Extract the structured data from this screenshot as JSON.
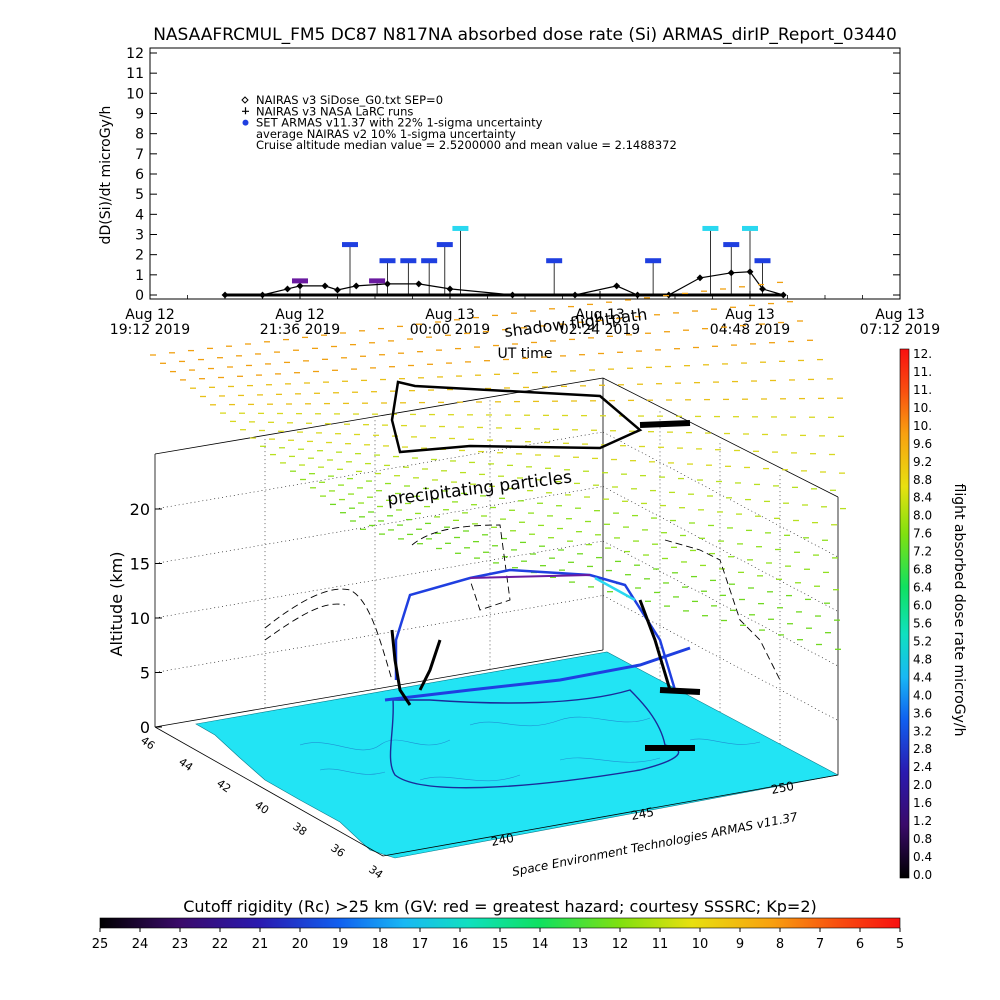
{
  "title": "NASAAFRCMUL_FM5 DC87 N817NA absorbed dose rate (Si) ARMAS_dirIP_Report_03440",
  "top_chart": {
    "ylabel": "dD(Si)/dt microGy/h",
    "xlabel": "UT time",
    "legend": [
      {
        "marker": "diamond",
        "text": "NAIRAS v3 SiDose_G0.txt SEP=0"
      },
      {
        "marker": "plus",
        "text": "NAIRAS v3 NASA LaRC runs"
      },
      {
        "marker": "dot",
        "text": "SET ARMAS v11.37 with 22% 1-sigma uncertainty"
      },
      {
        "marker": "none",
        "text": "average NAIRAS v2 10% 1-sigma uncertainty"
      },
      {
        "marker": "none",
        "text": "Cruise altitude median value = 2.5200000 and mean value = 2.1488372"
      }
    ],
    "x_ticks": [
      {
        "l1": "Aug 12",
        "l2": "19:12 2019"
      },
      {
        "l1": "Aug 12",
        "l2": "21:36 2019"
      },
      {
        "l1": "Aug 13",
        "l2": "00:00 2019"
      },
      {
        "l1": "Aug 13",
        "l2": "02:24 2019"
      },
      {
        "l1": "Aug 13",
        "l2": "04:48 2019"
      },
      {
        "l1": "Aug 13",
        "l2": "07:12 2019"
      }
    ],
    "y_ticks": [
      "0",
      "1",
      "2",
      "3",
      "4",
      "5",
      "6",
      "7",
      "8",
      "9",
      "10",
      "11",
      "12"
    ]
  },
  "chart_data": [
    {
      "type": "scatter",
      "title": "NASAAFRCMUL_FM5 DC87 N817NA absorbed dose rate (Si) ARMAS_dirIP_Report_03440",
      "xlabel": "UT time",
      "ylabel": "dD(Si)/dt microGy/h",
      "xlim": [
        "2019-08-12 19:12",
        "2019-08-13 07:12"
      ],
      "ylim": [
        0,
        12
      ],
      "series": [
        {
          "name": "NAIRAS v3 SiDose_G0.txt SEP=0",
          "color": "#000000",
          "x": [
            "2019-08-12 20:24",
            "2019-08-12 21:00",
            "2019-08-12 21:24",
            "2019-08-12 21:36",
            "2019-08-12 22:00",
            "2019-08-12 22:12",
            "2019-08-12 22:30",
            "2019-08-12 23:00",
            "2019-08-12 23:30",
            "2019-08-13 00:00",
            "2019-08-13 01:00",
            "2019-08-13 02:00",
            "2019-08-13 02:40",
            "2019-08-13 03:00",
            "2019-08-13 03:30",
            "2019-08-13 04:00",
            "2019-08-13 04:30",
            "2019-08-13 04:48",
            "2019-08-13 05:00",
            "2019-08-13 05:20"
          ],
          "values": [
            0.0,
            0.0,
            0.3,
            0.45,
            0.45,
            0.25,
            0.45,
            0.55,
            0.55,
            0.3,
            0.0,
            0.0,
            0.45,
            0.0,
            0.0,
            0.85,
            1.1,
            1.15,
            0.3,
            0.0
          ]
        },
        {
          "name": "SET ARMAS v11.37 with 22% 1-sigma uncertainty",
          "color": "#1f3fe0",
          "x": [
            "2019-08-12 21:36",
            "2019-08-12 22:24",
            "2019-08-12 22:50",
            "2019-08-12 23:00",
            "2019-08-12 23:20",
            "2019-08-12 23:40",
            "2019-08-12 23:55",
            "2019-08-13 00:10",
            "2019-08-13 01:40",
            "2019-08-13 03:15",
            "2019-08-13 04:10",
            "2019-08-13 04:30",
            "2019-08-13 04:48",
            "2019-08-13 05:00"
          ],
          "values": [
            0.7,
            2.5,
            0.7,
            1.7,
            1.7,
            1.7,
            2.5,
            3.3,
            1.7,
            1.7,
            3.3,
            2.5,
            3.3,
            1.7
          ]
        }
      ]
    },
    {
      "type": "scatter",
      "subtype": "3d-flightpath",
      "zlabel": "Altitude (km)",
      "z_ticks": [
        0,
        5,
        10,
        15,
        20
      ],
      "lat_ticks": [
        46,
        44,
        42,
        40,
        38,
        36,
        34
      ],
      "lon_ticks": [
        240,
        245,
        250
      ],
      "annotations": [
        "shadow flightpath",
        "precipitating particles",
        "Space Environment Technologies ARMAS v11.37"
      ],
      "colorbar": {
        "label": "flight absorbed dose rate microGy/h",
        "ticks": [
          "12.",
          "11.",
          "11.",
          "10.",
          "10.",
          "9.6",
          "9.2",
          "8.8",
          "8.4",
          "8.0",
          "7.6",
          "7.2",
          "6.8",
          "6.4",
          "6.0",
          "5.6",
          "5.2",
          "4.8",
          "4.4",
          "4.0",
          "3.6",
          "3.2",
          "2.8",
          "2.4",
          "2.0",
          "1.6",
          "1.2",
          "0.8",
          "0.4",
          "0.0"
        ]
      },
      "cutoff_bar": {
        "label": "Cutoff rigidity (Rc) >25 km (GV: red = greatest hazard; courtesy SSSRC; Kp=2)",
        "ticks": [
          "25",
          "24",
          "23",
          "22",
          "21",
          "20",
          "19",
          "18",
          "17",
          "16",
          "15",
          "14",
          "13",
          "12",
          "11",
          "10",
          "9",
          "8",
          "7",
          "6",
          "5"
        ]
      }
    }
  ],
  "scene": {
    "z_label": "Altitude (km)",
    "z_ticks": [
      "0",
      "5",
      "10",
      "15",
      "20"
    ],
    "lat_ticks": [
      "46",
      "44",
      "42",
      "40",
      "38",
      "36",
      "34"
    ],
    "lon_ticks": [
      "240",
      "245",
      "250"
    ],
    "shadow_label": "shadow flightpath",
    "precip_label": "precipitating particles",
    "credit": "Space Environment Technologies ARMAS v11.37"
  },
  "colorbar": {
    "label": "flight absorbed dose rate microGy/h",
    "ticks": [
      "12.",
      "11.",
      "11.",
      "10.",
      "10.",
      "9.6",
      "9.2",
      "8.8",
      "8.4",
      "8.0",
      "7.6",
      "7.2",
      "6.8",
      "6.4",
      "6.0",
      "5.6",
      "5.2",
      "4.8",
      "4.4",
      "4.0",
      "3.6",
      "3.2",
      "2.8",
      "2.4",
      "2.0",
      "1.6",
      "1.2",
      "0.8",
      "0.4",
      "0.0"
    ]
  },
  "cutoff": {
    "label": "Cutoff rigidity (Rc) >25 km (GV: red = greatest hazard; courtesy SSSRC; Kp=2)",
    "ticks": [
      "25",
      "24",
      "23",
      "22",
      "21",
      "20",
      "19",
      "18",
      "17",
      "16",
      "15",
      "14",
      "13",
      "12",
      "11",
      "10",
      "9",
      "8",
      "7",
      "6",
      "5"
    ]
  },
  "colors": {
    "ground": "#22e4f4",
    "path_black": "#000000",
    "armas_blue": "#1f3fe0",
    "armas_cyan": "#2ad8f0",
    "armas_purple": "#6a1aa0"
  }
}
